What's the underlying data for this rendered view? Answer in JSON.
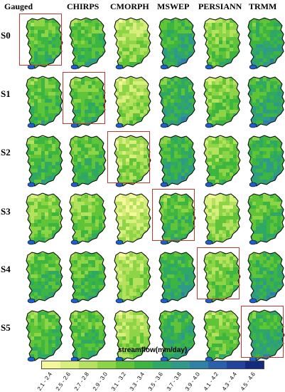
{
  "columns": [
    "Gauged",
    "CHIRPS",
    "CMORPH",
    "MSWEP",
    "PERSIANN",
    "TRMM"
  ],
  "rows": [
    "S0",
    "S1",
    "S2",
    "S3",
    "S4",
    "S5"
  ],
  "highlighted_cells": [
    {
      "row": "S0",
      "column": "Gauged"
    },
    {
      "row": "S1",
      "column": "CHIRPS"
    },
    {
      "row": "S2",
      "column": "CMORPH"
    },
    {
      "row": "S3",
      "column": "MSWEP"
    },
    {
      "row": "S4",
      "column": "PERSIANN"
    },
    {
      "row": "S5",
      "column": "TRMM"
    }
  ],
  "legend": {
    "title": "streamflow(mm/day)",
    "classes": [
      {
        "label": "2.1 - 2.4",
        "color": "#f4f79a"
      },
      {
        "label": "2.5 - 2.6",
        "color": "#d8ef7e"
      },
      {
        "label": "2.7 - 2.8",
        "color": "#b4e15e"
      },
      {
        "label": "2.9 - 3.0",
        "color": "#8ed447"
      },
      {
        "label": "3.1 - 3.2",
        "color": "#5fc437"
      },
      {
        "label": "3.3 - 3.4",
        "color": "#3cb640"
      },
      {
        "label": "3.5 - 3.6",
        "color": "#30a865"
      },
      {
        "label": "3.7 - 3.8",
        "color": "#2f9a8a"
      },
      {
        "label": "3.9 - 4.0",
        "color": "#2f81a8"
      },
      {
        "label": "4.1 - 4.2",
        "color": "#2a60ac"
      },
      {
        "label": "4.3 - 4.4",
        "color": "#22449e"
      },
      {
        "label": "4.5 - 4.6",
        "color": "#142a80"
      }
    ]
  },
  "colors": {
    "highlight_border": "#c0392b",
    "basin_outline": "#000000",
    "outlet_water": "#1e5fd0"
  }
}
